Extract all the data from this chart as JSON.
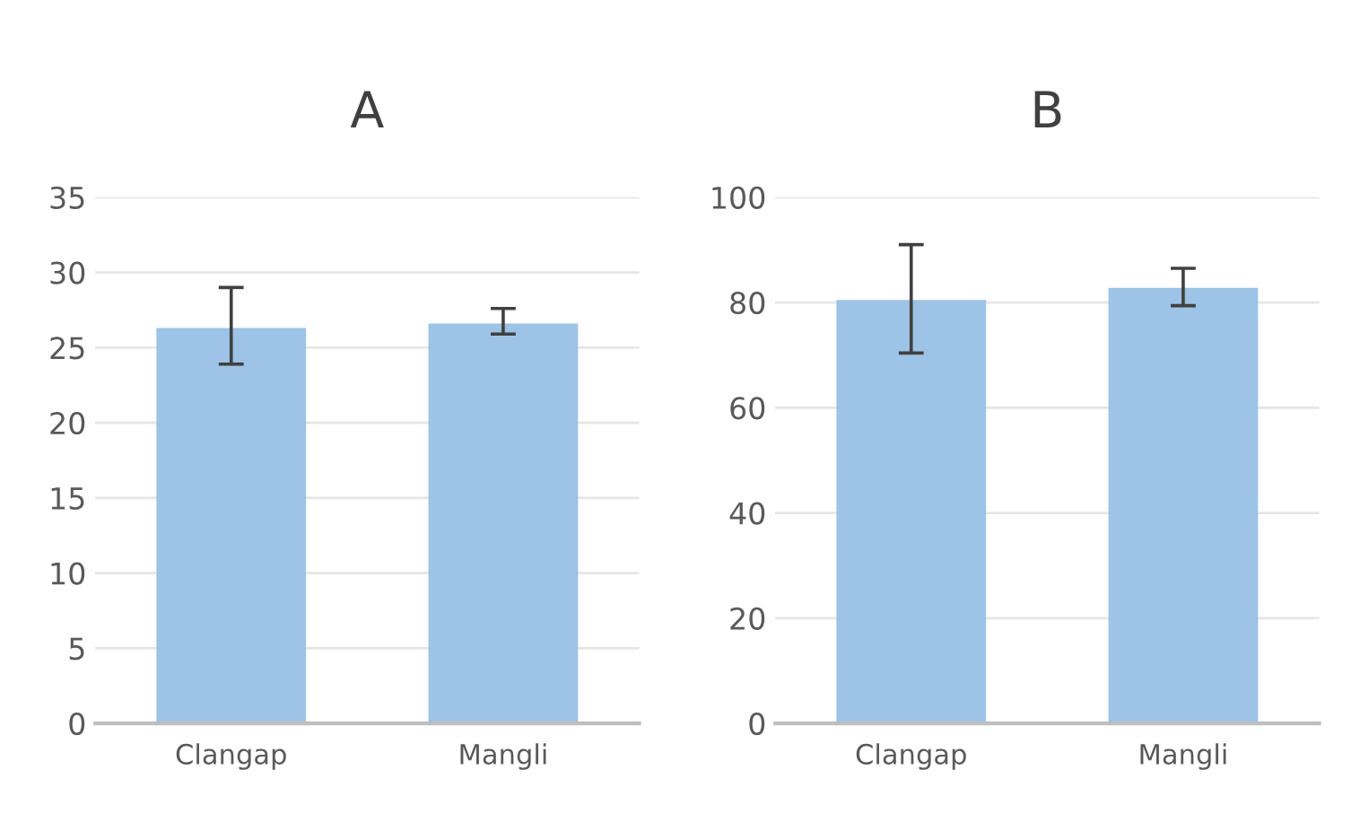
{
  "chart_data": [
    {
      "type": "bar",
      "title": "A",
      "categories": [
        "Clangap",
        "Mangli"
      ],
      "values": [
        26.3,
        26.6
      ],
      "errors": [
        [
          23.9,
          29.0
        ],
        [
          25.9,
          27.6
        ]
      ],
      "color": "#9dc3e6",
      "ylim": [
        0,
        35
      ],
      "yticks": [
        0,
        5,
        10,
        15,
        20,
        25,
        30,
        35
      ],
      "grid": "y",
      "legend": false
    },
    {
      "type": "bar",
      "title": "B",
      "categories": [
        "Clangap",
        "Mangli"
      ],
      "values": [
        80.5,
        82.8
      ],
      "errors": [
        [
          70.4,
          91.0
        ],
        [
          79.4,
          86.5
        ]
      ],
      "color": "#9dc3e6",
      "ylim": [
        0,
        100
      ],
      "yticks": [
        0,
        20,
        40,
        60,
        80,
        100
      ],
      "grid": "y",
      "legend": false
    }
  ]
}
